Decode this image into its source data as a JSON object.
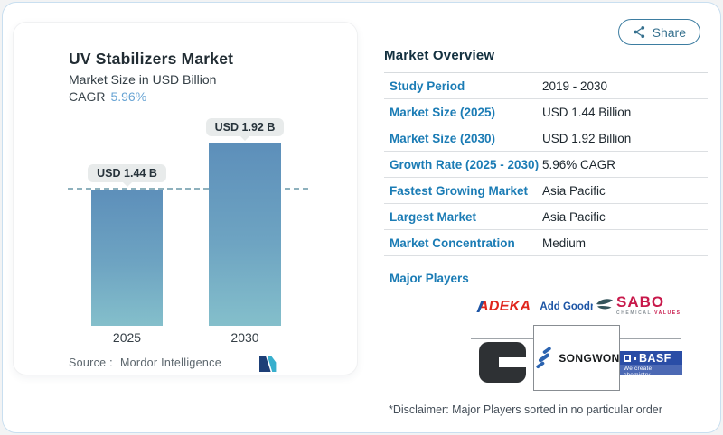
{
  "header": {
    "share_label": "Share"
  },
  "chart_card": {
    "title": "UV Stabilizers Market",
    "subtitle": "Market Size in USD Billion",
    "cagr_label": "CAGR",
    "cagr_value": "5.96%",
    "source_label": "Source :",
    "source_name": "Mordor Intelligence"
  },
  "chart_data": {
    "type": "bar",
    "categories": [
      "2025",
      "2030"
    ],
    "values": [
      1.44,
      1.92
    ],
    "value_labels": [
      "USD 1.44 B",
      "USD 1.92 B"
    ],
    "unit": "USD Billion",
    "ylim": [
      0,
      2.28
    ],
    "grid": false,
    "reference_line": {
      "value": 1.44,
      "style": "dashed",
      "color": "#7ba4b2"
    },
    "bar_gradient_top": "#5d8fba",
    "bar_gradient_bottom": "#84bfcb"
  },
  "overview": {
    "heading": "Market Overview",
    "rows": [
      {
        "label": "Study Period",
        "value": "2019 - 2030"
      },
      {
        "label": "Market Size (2025)",
        "value": "USD 1.44 Billion"
      },
      {
        "label": "Market Size (2030)",
        "value": "USD 1.92 Billion"
      },
      {
        "label": "Growth Rate (2025 - 2030)",
        "value": "5.96% CAGR"
      },
      {
        "label": "Fastest Growing Market",
        "value": "Asia Pacific"
      },
      {
        "label": "Largest Market",
        "value": "Asia Pacific"
      },
      {
        "label": "Market Concentration",
        "value": "Medium"
      }
    ],
    "major_players_label": "Major Players",
    "disclaimer": "*Disclaimer: Major Players sorted in no particular order"
  },
  "players": {
    "adeka": {
      "name": "ADEKA",
      "tagline": "Add Goodness"
    },
    "sabo": {
      "name": "SABO",
      "tagline_left": "CHEMICAL",
      "tagline_right": "VALUES"
    },
    "songwon": {
      "name": "SONGWON"
    },
    "basf": {
      "name": "BASF",
      "tagline": "We create chemistry"
    }
  },
  "colors": {
    "label_blue": "#1b7cb5",
    "cagr_blue": "#68a4d4",
    "share_teal": "#35708e",
    "heading_navy": "#13303f",
    "adeka_red": "#e0251c",
    "sabo_red": "#c8194b",
    "basf_blue": "#2a4da6",
    "songwon_blue": "#2b63b0"
  }
}
